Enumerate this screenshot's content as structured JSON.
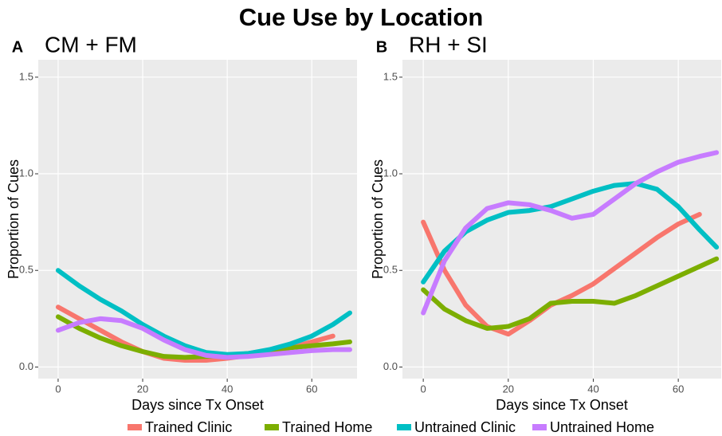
{
  "title": "Cue Use by Location",
  "chart_data": [
    {
      "type": "line",
      "panel": "A",
      "title": "CM + FM",
      "xlabel": "Days since Tx Onset",
      "ylabel": "Proportion of Cues",
      "x": [
        0,
        5,
        10,
        15,
        20,
        25,
        30,
        35,
        40,
        45,
        50,
        55,
        60,
        65,
        69
      ],
      "xlim": [
        -4.7,
        70.7
      ],
      "xticks": [
        0,
        20,
        40,
        60
      ],
      "ylim": [
        -0.06,
        1.59
      ],
      "yticks": [
        {
          "value": 0,
          "label": "0.0"
        },
        0.5,
        {
          "value": 1,
          "label": "1.0"
        },
        1.5
      ],
      "grid": true,
      "series": [
        {
          "name": "Trained Clinic",
          "color": "#F8766D",
          "values": [
            0.31,
            0.25,
            0.19,
            0.13,
            0.08,
            0.045,
            0.035,
            0.035,
            0.045,
            0.06,
            0.08,
            0.1,
            0.13,
            0.16,
            null
          ]
        },
        {
          "name": "Trained Home",
          "color": "#7CAE00",
          "values": [
            0.26,
            0.2,
            0.15,
            0.11,
            0.08,
            0.055,
            0.05,
            0.055,
            0.06,
            0.07,
            0.085,
            0.1,
            0.11,
            0.12,
            0.13
          ]
        },
        {
          "name": "Untrained Clinic",
          "color": "#00BFC4",
          "values": [
            0.5,
            0.42,
            0.35,
            0.29,
            0.22,
            0.16,
            0.11,
            0.075,
            0.065,
            0.07,
            0.09,
            0.12,
            0.16,
            0.22,
            0.28
          ]
        },
        {
          "name": "Untrained Home",
          "color": "#C77CFF",
          "values": [
            0.19,
            0.23,
            0.25,
            0.24,
            0.2,
            0.14,
            0.09,
            0.06,
            0.05,
            0.055,
            0.065,
            0.075,
            0.085,
            0.09,
            0.09
          ]
        }
      ]
    },
    {
      "type": "line",
      "panel": "B",
      "title": "RH + SI",
      "xlabel": "Days since Tx Onset",
      "ylabel": "Proportion of Cues",
      "x": [
        0,
        5,
        10,
        15,
        20,
        25,
        30,
        35,
        40,
        45,
        50,
        55,
        60,
        65,
        69
      ],
      "xlim": [
        -4.9,
        70.1
      ],
      "xticks": [
        0,
        20,
        40,
        60
      ],
      "ylim": [
        -0.06,
        1.59
      ],
      "yticks": [
        {
          "value": 0,
          "label": "0.0"
        },
        0.5,
        {
          "value": 1,
          "label": "1.0"
        },
        1.5
      ],
      "grid": true,
      "series": [
        {
          "name": "Trained Clinic",
          "color": "#F8766D",
          "values": [
            0.75,
            0.5,
            0.32,
            0.21,
            0.17,
            0.24,
            0.32,
            0.37,
            0.43,
            0.51,
            0.59,
            0.67,
            0.74,
            0.79,
            null
          ]
        },
        {
          "name": "Trained Home",
          "color": "#7CAE00",
          "values": [
            0.4,
            0.3,
            0.24,
            0.2,
            0.21,
            0.25,
            0.33,
            0.34,
            0.34,
            0.33,
            0.37,
            0.42,
            0.47,
            0.52,
            0.56
          ]
        },
        {
          "name": "Untrained Clinic",
          "color": "#00BFC4",
          "values": [
            0.44,
            0.6,
            0.7,
            0.76,
            0.8,
            0.81,
            0.83,
            0.87,
            0.91,
            0.94,
            0.95,
            0.92,
            0.83,
            0.71,
            0.62
          ]
        },
        {
          "name": "Untrained Home",
          "color": "#C77CFF",
          "values": [
            0.28,
            0.55,
            0.72,
            0.82,
            0.85,
            0.84,
            0.81,
            0.77,
            0.79,
            0.87,
            0.95,
            1.01,
            1.06,
            1.09,
            1.11
          ]
        }
      ]
    }
  ]
}
